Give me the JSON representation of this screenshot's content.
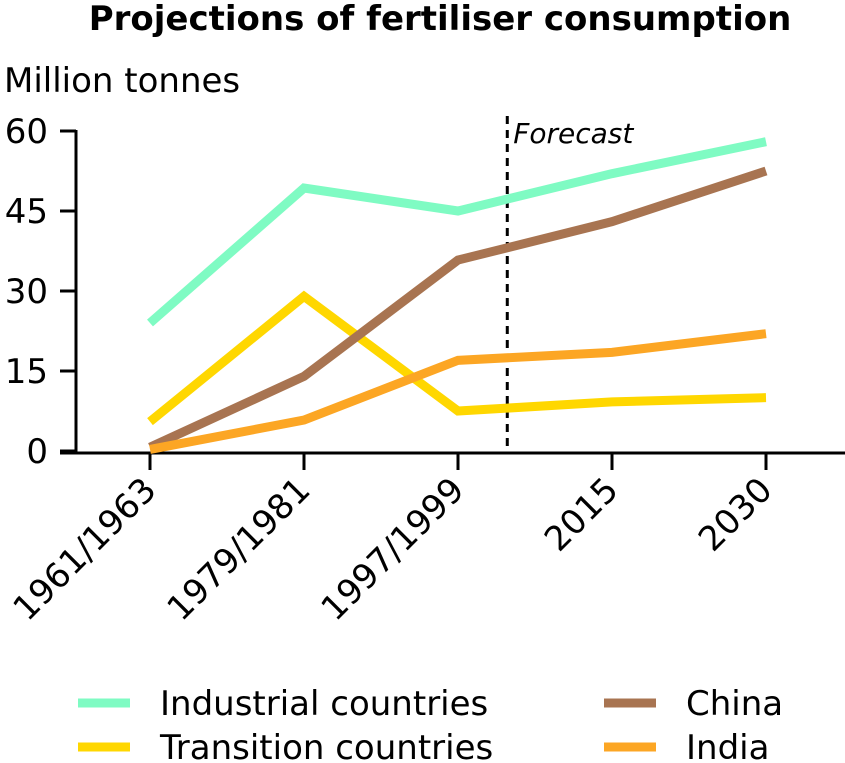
{
  "chart_data": {
    "type": "line",
    "title": "Projections of fertiliser consumption",
    "ylabel": "Million tonnes",
    "xlabel": "",
    "categories": [
      "1961/1963",
      "1979/1981",
      "1997/1999",
      "2015",
      "2030"
    ],
    "ylim": [
      0,
      60
    ],
    "yticks": [
      0,
      15,
      30,
      45,
      60
    ],
    "grid": false,
    "legend_position": "bottom",
    "forecast": {
      "label": "Forecast",
      "after_index": 2.32
    },
    "series": [
      {
        "name": "Industrial countries",
        "color": "#7ffbc3",
        "values": [
          24,
          49.3,
          45,
          52,
          58
        ]
      },
      {
        "name": "Transition countries",
        "color": "#ffd700",
        "values": [
          5.5,
          29,
          7.5,
          9.2,
          10
        ]
      },
      {
        "name": "China",
        "color": "#a87451",
        "values": [
          0.7,
          14,
          35.8,
          43,
          52.5
        ]
      },
      {
        "name": "India",
        "color": "#fca624",
        "values": [
          0.3,
          5.8,
          17,
          18.5,
          22
        ]
      }
    ]
  }
}
